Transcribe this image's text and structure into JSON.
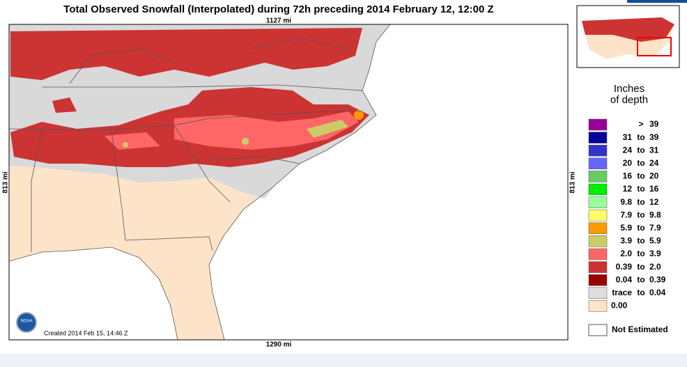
{
  "header": {
    "title": "Total Observed Snowfall (Interpolated) during 72h preceding 2014 February 12, 12:00 Z"
  },
  "map": {
    "top_scale": "1127 mi",
    "bottom_scale": "1290 mi",
    "left_scale": "813 mi",
    "right_scale": "813 mi",
    "credit": "Created 2014 Feb 15, 14:46 Z",
    "logo": "NOAA"
  },
  "legend": {
    "title_lines": [
      "Inches",
      "of depth"
    ],
    "rows": [
      {
        "color": "#990099",
        "sep": ">",
        "high": "39"
      },
      {
        "color": "#000099",
        "low": "31",
        "sep": "to",
        "high": "39"
      },
      {
        "color": "#3333cc",
        "low": "24",
        "sep": "to",
        "high": "31"
      },
      {
        "color": "#6666ff",
        "low": "20",
        "sep": "to",
        "high": "24"
      },
      {
        "color": "#66cc66",
        "low": "16",
        "sep": "to",
        "high": "20"
      },
      {
        "color": "#00ee00",
        "low": "12",
        "sep": "to",
        "high": "16"
      },
      {
        "color": "#99ff99",
        "low": "9.8",
        "sep": "to",
        "high": "12"
      },
      {
        "color": "#ffff66",
        "low": "7.9",
        "sep": "to",
        "high": "9.8"
      },
      {
        "color": "#ff9900",
        "low": "5.9",
        "sep": "to",
        "high": "7.9"
      },
      {
        "color": "#cccc66",
        "low": "3.9",
        "sep": "to",
        "high": "5.9"
      },
      {
        "color": "#ff6666",
        "low": "2.0",
        "sep": "to",
        "high": "3.9"
      },
      {
        "color": "#cc3333",
        "low": "0.39",
        "sep": "to",
        "high": "2.0"
      },
      {
        "color": "#990000",
        "low": "0.04",
        "sep": "to",
        "high": "0.39"
      },
      {
        "color": "#dddddd",
        "low": "trace",
        "sep": "to",
        "high": "0.04"
      },
      {
        "color": "#fde4c8",
        "low": "0.00"
      }
    ],
    "not_estimated": {
      "color": "#ffffff",
      "label": "Not Estimated"
    }
  }
}
